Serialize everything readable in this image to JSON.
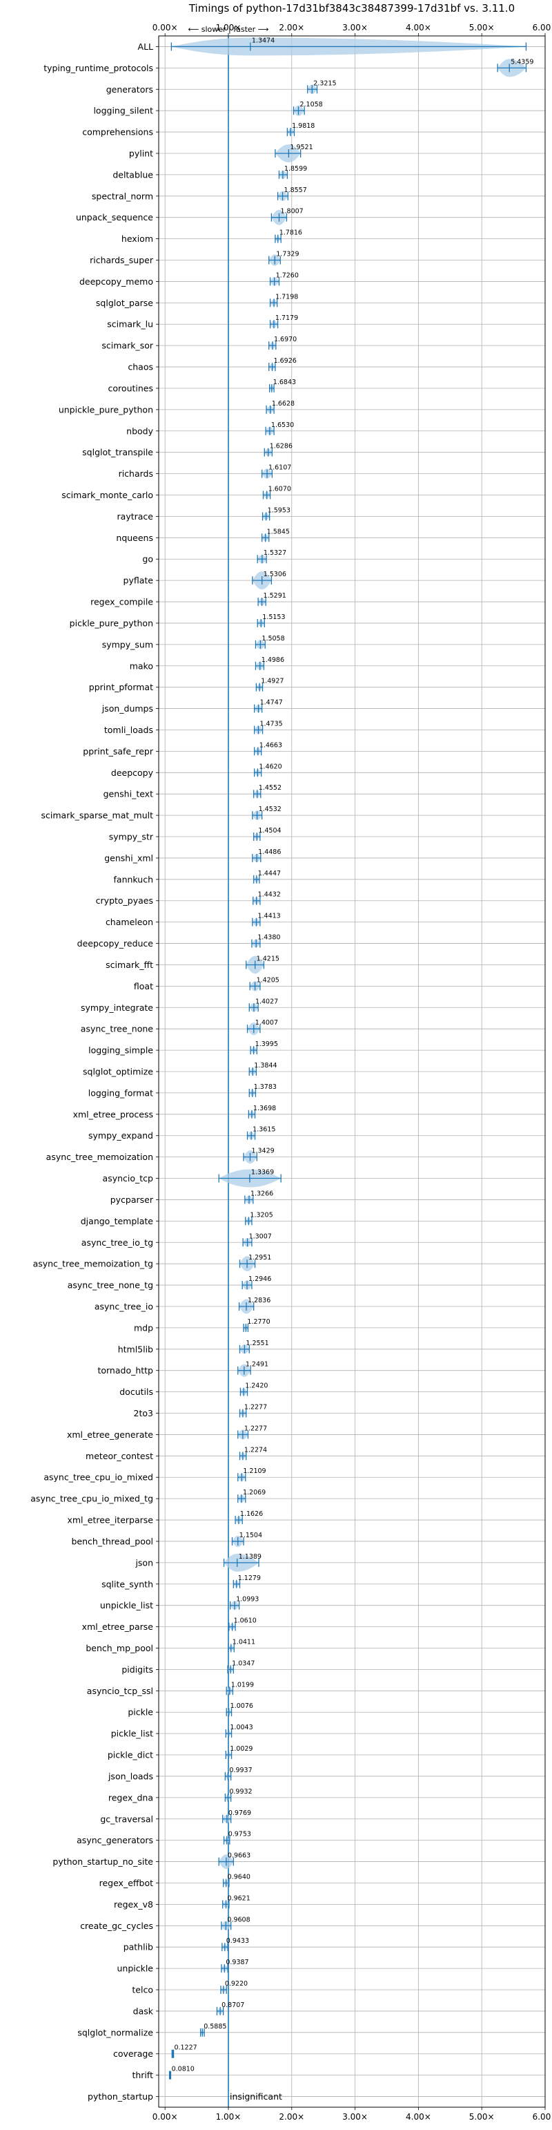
{
  "chart_data": {
    "type": "violin",
    "title": "Timings of python-17d31bf3843c38487399-17d31bf vs. 3.11.0",
    "direction_label": "⟵ slower | faster ⟶",
    "xlim": [
      -0.1,
      6.0
    ],
    "xticks": [
      0,
      1,
      2,
      3,
      4,
      5,
      6
    ],
    "xtick_labels": [
      "0.00×",
      "1.00×",
      "2.00×",
      "3.00×",
      "4.00×",
      "5.00×",
      "6.00×"
    ],
    "reference_line": 1.0,
    "grid": true,
    "colors": {
      "violin": "#aecde8",
      "marker": "#1f77b4",
      "median": "#d62728",
      "grid": "#b0b0b0"
    },
    "benchmarks": [
      {
        "name": "ALL",
        "value": 1.3474,
        "label": "1.3474",
        "low": 0.1,
        "high": 5.7
      },
      {
        "name": "typing_runtime_protocols",
        "value": 5.4359,
        "label": "5.4359",
        "low": 5.25,
        "high": 5.7
      },
      {
        "name": "generators",
        "value": 2.3215,
        "label": "2.3215",
        "low": 2.25,
        "high": 2.4
      },
      {
        "name": "logging_silent",
        "value": 2.1058,
        "label": "2.1058",
        "low": 2.03,
        "high": 2.2
      },
      {
        "name": "comprehensions",
        "value": 1.9818,
        "label": "1.9818",
        "low": 1.93,
        "high": 2.04
      },
      {
        "name": "pylint",
        "value": 1.9521,
        "label": "1.9521",
        "low": 1.74,
        "high": 2.14
      },
      {
        "name": "deltablue",
        "value": 1.8599,
        "label": "1.8599",
        "low": 1.8,
        "high": 1.93
      },
      {
        "name": "spectral_norm",
        "value": 1.8557,
        "label": "1.8557",
        "low": 1.78,
        "high": 1.94
      },
      {
        "name": "unpack_sequence",
        "value": 1.8007,
        "label": "1.8007",
        "low": 1.68,
        "high": 1.92
      },
      {
        "name": "hexiom",
        "value": 1.7816,
        "label": "1.7816",
        "low": 1.74,
        "high": 1.83
      },
      {
        "name": "richards_super",
        "value": 1.7329,
        "label": "1.7329",
        "low": 1.64,
        "high": 1.82
      },
      {
        "name": "deepcopy_memo",
        "value": 1.726,
        "label": "1.7260",
        "low": 1.66,
        "high": 1.8
      },
      {
        "name": "sqlglot_parse",
        "value": 1.7198,
        "label": "1.7198",
        "low": 1.66,
        "high": 1.77
      },
      {
        "name": "scimark_lu",
        "value": 1.7179,
        "label": "1.7179",
        "low": 1.66,
        "high": 1.78
      },
      {
        "name": "scimark_sor",
        "value": 1.697,
        "label": "1.6970",
        "low": 1.64,
        "high": 1.75
      },
      {
        "name": "chaos",
        "value": 1.6926,
        "label": "1.6926",
        "low": 1.64,
        "high": 1.74
      },
      {
        "name": "coroutines",
        "value": 1.6843,
        "label": "1.6843",
        "low": 1.65,
        "high": 1.72
      },
      {
        "name": "unpickle_pure_python",
        "value": 1.6628,
        "label": "1.6628",
        "low": 1.6,
        "high": 1.72
      },
      {
        "name": "nbody",
        "value": 1.653,
        "label": "1.6530",
        "low": 1.59,
        "high": 1.72
      },
      {
        "name": "sqlglot_transpile",
        "value": 1.6286,
        "label": "1.6286",
        "low": 1.57,
        "high": 1.69
      },
      {
        "name": "richards",
        "value": 1.6107,
        "label": "1.6107",
        "low": 1.53,
        "high": 1.69
      },
      {
        "name": "scimark_monte_carlo",
        "value": 1.607,
        "label": "1.6070",
        "low": 1.55,
        "high": 1.66
      },
      {
        "name": "raytrace",
        "value": 1.5953,
        "label": "1.5953",
        "low": 1.54,
        "high": 1.65
      },
      {
        "name": "nqueens",
        "value": 1.5845,
        "label": "1.5845",
        "low": 1.53,
        "high": 1.64
      },
      {
        "name": "go",
        "value": 1.5327,
        "label": "1.5327",
        "low": 1.46,
        "high": 1.6
      },
      {
        "name": "pyflate",
        "value": 1.5306,
        "label": "1.5306",
        "low": 1.38,
        "high": 1.68
      },
      {
        "name": "regex_compile",
        "value": 1.5291,
        "label": "1.5291",
        "low": 1.47,
        "high": 1.59
      },
      {
        "name": "pickle_pure_python",
        "value": 1.5153,
        "label": "1.5153",
        "low": 1.46,
        "high": 1.57
      },
      {
        "name": "sympy_sum",
        "value": 1.5058,
        "label": "1.5058",
        "low": 1.43,
        "high": 1.58
      },
      {
        "name": "mako",
        "value": 1.4986,
        "label": "1.4986",
        "low": 1.43,
        "high": 1.56
      },
      {
        "name": "pprint_pformat",
        "value": 1.4927,
        "label": "1.4927",
        "low": 1.44,
        "high": 1.54
      },
      {
        "name": "json_dumps",
        "value": 1.4747,
        "label": "1.4747",
        "low": 1.41,
        "high": 1.53
      },
      {
        "name": "tomli_loads",
        "value": 1.4735,
        "label": "1.4735",
        "low": 1.41,
        "high": 1.54
      },
      {
        "name": "pprint_safe_repr",
        "value": 1.4663,
        "label": "1.4663",
        "low": 1.41,
        "high": 1.52
      },
      {
        "name": "deepcopy",
        "value": 1.462,
        "label": "1.4620",
        "low": 1.41,
        "high": 1.52
      },
      {
        "name": "genshi_text",
        "value": 1.4552,
        "label": "1.4552",
        "low": 1.4,
        "high": 1.51
      },
      {
        "name": "scimark_sparse_mat_mult",
        "value": 1.4532,
        "label": "1.4532",
        "low": 1.38,
        "high": 1.53
      },
      {
        "name": "sympy_str",
        "value": 1.4504,
        "label": "1.4504",
        "low": 1.4,
        "high": 1.5
      },
      {
        "name": "genshi_xml",
        "value": 1.4486,
        "label": "1.4486",
        "low": 1.38,
        "high": 1.51
      },
      {
        "name": "fannkuch",
        "value": 1.4447,
        "label": "1.4447",
        "low": 1.4,
        "high": 1.49
      },
      {
        "name": "crypto_pyaes",
        "value": 1.4432,
        "label": "1.4432",
        "low": 1.39,
        "high": 1.5
      },
      {
        "name": "chameleon",
        "value": 1.4413,
        "label": "1.4413",
        "low": 1.38,
        "high": 1.5
      },
      {
        "name": "deepcopy_reduce",
        "value": 1.438,
        "label": "1.4380",
        "low": 1.37,
        "high": 1.5
      },
      {
        "name": "scimark_fft",
        "value": 1.4215,
        "label": "1.4215",
        "low": 1.28,
        "high": 1.56
      },
      {
        "name": "float",
        "value": 1.4205,
        "label": "1.4205",
        "low": 1.34,
        "high": 1.5
      },
      {
        "name": "sympy_integrate",
        "value": 1.4027,
        "label": "1.4027",
        "low": 1.33,
        "high": 1.47
      },
      {
        "name": "async_tree_none",
        "value": 1.4007,
        "label": "1.4007",
        "low": 1.3,
        "high": 1.5
      },
      {
        "name": "logging_simple",
        "value": 1.3995,
        "label": "1.3995",
        "low": 1.35,
        "high": 1.45
      },
      {
        "name": "sqlglot_optimize",
        "value": 1.3844,
        "label": "1.3844",
        "low": 1.33,
        "high": 1.44
      },
      {
        "name": "logging_format",
        "value": 1.3783,
        "label": "1.3783",
        "low": 1.33,
        "high": 1.43
      },
      {
        "name": "xml_etree_process",
        "value": 1.3698,
        "label": "1.3698",
        "low": 1.32,
        "high": 1.42
      },
      {
        "name": "sympy_expand",
        "value": 1.3615,
        "label": "1.3615",
        "low": 1.3,
        "high": 1.42
      },
      {
        "name": "async_tree_memoization",
        "value": 1.3429,
        "label": "1.3429",
        "low": 1.24,
        "high": 1.45
      },
      {
        "name": "asyncio_tcp",
        "value": 1.3369,
        "label": "1.3369",
        "low": 0.85,
        "high": 1.83
      },
      {
        "name": "pycparser",
        "value": 1.3266,
        "label": "1.3266",
        "low": 1.26,
        "high": 1.39
      },
      {
        "name": "django_template",
        "value": 1.3205,
        "label": "1.3205",
        "low": 1.27,
        "high": 1.37
      },
      {
        "name": "async_tree_io_tg",
        "value": 1.3007,
        "label": "1.3007",
        "low": 1.23,
        "high": 1.37
      },
      {
        "name": "async_tree_memoization_tg",
        "value": 1.2951,
        "label": "1.2951",
        "low": 1.18,
        "high": 1.42
      },
      {
        "name": "async_tree_none_tg",
        "value": 1.2946,
        "label": "1.2946",
        "low": 1.22,
        "high": 1.37
      },
      {
        "name": "async_tree_io",
        "value": 1.2836,
        "label": "1.2836",
        "low": 1.17,
        "high": 1.4
      },
      {
        "name": "mdp",
        "value": 1.277,
        "label": "1.2770",
        "low": 1.24,
        "high": 1.31
      },
      {
        "name": "html5lib",
        "value": 1.2551,
        "label": "1.2551",
        "low": 1.18,
        "high": 1.33
      },
      {
        "name": "tornado_http",
        "value": 1.2491,
        "label": "1.2491",
        "low": 1.15,
        "high": 1.35
      },
      {
        "name": "docutils",
        "value": 1.242,
        "label": "1.2420",
        "low": 1.19,
        "high": 1.3
      },
      {
        "name": "2to3",
        "value": 1.2277,
        "label": "1.2277",
        "low": 1.18,
        "high": 1.28
      },
      {
        "name": "xml_etree_generate",
        "value": 1.2277,
        "label": "1.2277",
        "low": 1.15,
        "high": 1.31
      },
      {
        "name": "meteor_contest",
        "value": 1.2274,
        "label": "1.2274",
        "low": 1.18,
        "high": 1.28
      },
      {
        "name": "async_tree_cpu_io_mixed",
        "value": 1.2109,
        "label": "1.2109",
        "low": 1.15,
        "high": 1.27
      },
      {
        "name": "async_tree_cpu_io_mixed_tg",
        "value": 1.2069,
        "label": "1.2069",
        "low": 1.15,
        "high": 1.27
      },
      {
        "name": "xml_etree_iterparse",
        "value": 1.1626,
        "label": "1.1626",
        "low": 1.11,
        "high": 1.22
      },
      {
        "name": "bench_thread_pool",
        "value": 1.1504,
        "label": "1.1504",
        "low": 1.06,
        "high": 1.24
      },
      {
        "name": "json",
        "value": 1.1389,
        "label": "1.1389",
        "low": 0.93,
        "high": 1.48
      },
      {
        "name": "sqlite_synth",
        "value": 1.1279,
        "label": "1.1279",
        "low": 1.08,
        "high": 1.18
      },
      {
        "name": "unpickle_list",
        "value": 1.0993,
        "label": "1.0993",
        "low": 1.03,
        "high": 1.17
      },
      {
        "name": "xml_etree_parse",
        "value": 1.061,
        "label": "1.0610",
        "low": 1.01,
        "high": 1.11
      },
      {
        "name": "bench_mp_pool",
        "value": 1.0411,
        "label": "1.0411",
        "low": 1.0,
        "high": 1.09
      },
      {
        "name": "pidigits",
        "value": 1.0347,
        "label": "1.0347",
        "low": 0.99,
        "high": 1.08
      },
      {
        "name": "asyncio_tcp_ssl",
        "value": 1.0199,
        "label": "1.0199",
        "low": 0.97,
        "high": 1.07
      },
      {
        "name": "pickle",
        "value": 1.0076,
        "label": "1.0076",
        "low": 0.97,
        "high": 1.05
      },
      {
        "name": "pickle_list",
        "value": 1.0043,
        "label": "1.0043",
        "low": 0.96,
        "high": 1.05
      },
      {
        "name": "pickle_dict",
        "value": 1.0029,
        "label": "1.0029",
        "low": 0.96,
        "high": 1.05
      },
      {
        "name": "json_loads",
        "value": 0.9937,
        "label": "0.9937",
        "low": 0.95,
        "high": 1.04
      },
      {
        "name": "regex_dna",
        "value": 0.9932,
        "label": "0.9932",
        "low": 0.95,
        "high": 1.04
      },
      {
        "name": "gc_traversal",
        "value": 0.9769,
        "label": "0.9769",
        "low": 0.91,
        "high": 1.04
      },
      {
        "name": "async_generators",
        "value": 0.9753,
        "label": "0.9753",
        "low": 0.93,
        "high": 1.02
      },
      {
        "name": "python_startup_no_site",
        "value": 0.9663,
        "label": "0.9663",
        "low": 0.85,
        "high": 1.08
      },
      {
        "name": "regex_effbot",
        "value": 0.964,
        "label": "0.9640",
        "low": 0.92,
        "high": 1.01
      },
      {
        "name": "regex_v8",
        "value": 0.9621,
        "label": "0.9621",
        "low": 0.91,
        "high": 1.01
      },
      {
        "name": "create_gc_cycles",
        "value": 0.9608,
        "label": "0.9608",
        "low": 0.89,
        "high": 1.04
      },
      {
        "name": "pathlib",
        "value": 0.9433,
        "label": "0.9433",
        "low": 0.9,
        "high": 0.99
      },
      {
        "name": "unpickle",
        "value": 0.9387,
        "label": "0.9387",
        "low": 0.89,
        "high": 0.99
      },
      {
        "name": "telco",
        "value": 0.922,
        "label": "0.9220",
        "low": 0.88,
        "high": 0.97
      },
      {
        "name": "dask",
        "value": 0.8707,
        "label": "0.8707",
        "low": 0.82,
        "high": 0.92
      },
      {
        "name": "sqlglot_normalize",
        "value": 0.5885,
        "label": "0.5885",
        "low": 0.56,
        "high": 0.62
      },
      {
        "name": "coverage",
        "value": 0.1227,
        "label": "0.1227",
        "low": 0.11,
        "high": 0.135
      },
      {
        "name": "thrift",
        "value": 0.081,
        "label": "0.0810",
        "low": 0.07,
        "high": 0.09
      },
      {
        "name": "python_startup",
        "value": null,
        "label": "insignificant",
        "low": null,
        "high": null
      }
    ]
  }
}
